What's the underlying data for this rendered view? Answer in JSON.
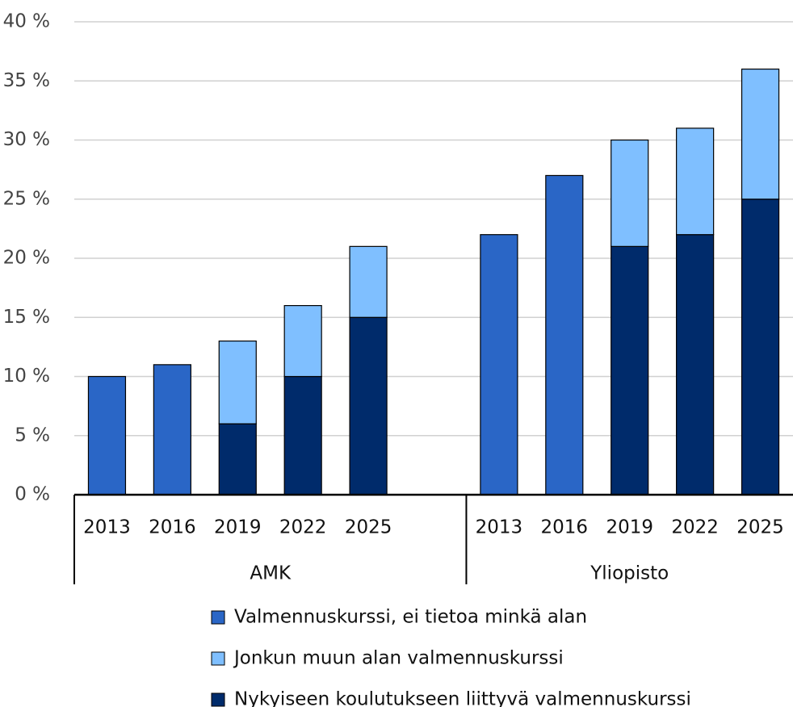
{
  "chart_data": {
    "type": "stacked_bar",
    "categories": [
      "2013",
      "2016",
      "2019",
      "2022",
      "2025",
      null,
      "2013",
      "2016",
      "2019",
      "2022",
      "2025"
    ],
    "group_labels": [
      "AMK",
      "Yliopisto"
    ],
    "series": [
      {
        "name": "Valmennuskurssi, ei tietoa minkä alan",
        "color": "#2a66c6",
        "values": [
          10,
          11,
          null,
          null,
          null,
          null,
          22,
          27,
          null,
          null,
          null
        ]
      },
      {
        "name": "Jonkun muun alan valmennuskurssi",
        "color": "#7fbfff",
        "values": [
          null,
          null,
          7,
          6,
          6,
          null,
          null,
          null,
          9,
          9,
          11
        ]
      },
      {
        "name": "Nykyiseen koulutukseen liittyvä valmennuskurssi",
        "color": "#002b6b",
        "values": [
          null,
          null,
          6,
          10,
          15,
          null,
          null,
          null,
          21,
          22,
          25
        ]
      }
    ],
    "ylim": [
      0,
      40
    ],
    "yticks": [
      {
        "value": 0,
        "label": "0 %"
      },
      {
        "value": 5,
        "label": "5 %"
      },
      {
        "value": 10,
        "label": "10 %"
      },
      {
        "value": 15,
        "label": "15 %"
      },
      {
        "value": 20,
        "label": "20 %"
      },
      {
        "value": 25,
        "label": "25 %"
      },
      {
        "value": 30,
        "label": "30 %"
      },
      {
        "value": 35,
        "label": "35 %"
      },
      {
        "value": 40,
        "label": "40 %"
      }
    ],
    "grid": true
  }
}
